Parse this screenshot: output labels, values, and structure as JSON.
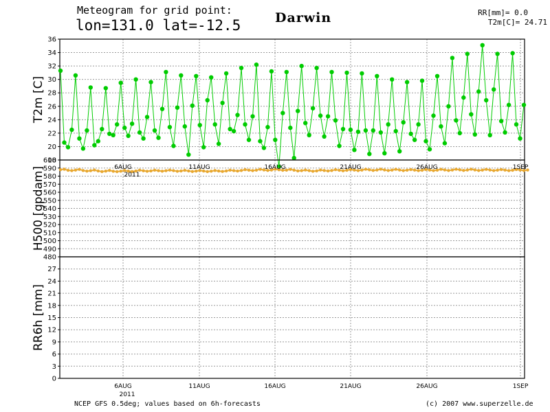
{
  "header": {
    "line1": "Meteogram for grid point:",
    "line2": "lon=131.0 lat=-12.5",
    "station": "Darwin",
    "rr_readout": "RR[mm]= 0.0",
    "t2m_readout": "T2m[C]= 24.71"
  },
  "footer": {
    "source": "NCEP GFS 0.5deg; values based on 6h-forecasts",
    "copyright": "(c) 2007 www.superzelle.de"
  },
  "colors": {
    "t2m": "#00cc00",
    "h500": "#e8a830",
    "axis": "#000000",
    "grid": "#999999"
  },
  "chart_data": [
    {
      "type": "line",
      "ylabel": "T2m [C]",
      "xlim": [
        "2011-08-01T00",
        "2011-09-01T06"
      ],
      "x_tick_labels": [
        "6AUG",
        "11AUG",
        "16AUG",
        "21AUG",
        "26AUG",
        "1SEP"
      ],
      "ylim": [
        18,
        36
      ],
      "y_ticks": [
        18,
        20,
        22,
        24,
        26,
        28,
        30,
        32,
        34,
        36
      ],
      "grid": true,
      "x_step_hours": 6,
      "series": [
        {
          "values": [
            31.3,
            20.6,
            19.9,
            22.5,
            30.6,
            21.2,
            19.7,
            22.4,
            28.8,
            20.2,
            20.8,
            22.6,
            28.7,
            21.9,
            21.7,
            23.3,
            29.5,
            22.8,
            21.6,
            23.4,
            30.0,
            22.1,
            21.2,
            24.4,
            29.6,
            22.4,
            21.3,
            25.6,
            31.1,
            22.9,
            20.1,
            25.8,
            30.6,
            23.0,
            18.8,
            26.1,
            30.5,
            23.2,
            19.9,
            26.9,
            30.3,
            23.3,
            20.4,
            26.5,
            30.9,
            22.6,
            22.3,
            24.7,
            31.7,
            23.3,
            21.0,
            24.5,
            32.2,
            20.8,
            19.8,
            22.9,
            31.2,
            21.0,
            17.0,
            25.0,
            31.1,
            22.8,
            18.3,
            25.3,
            32.0,
            23.5,
            21.7,
            25.7,
            31.7,
            24.6,
            21.5,
            24.5,
            31.1,
            23.9,
            20.1,
            22.6,
            31.0,
            22.5,
            19.5,
            22.2,
            30.9,
            22.4,
            18.9,
            22.4,
            30.5,
            22.1,
            19.0,
            23.3,
            30.0,
            22.3,
            19.3,
            23.6,
            29.6,
            21.9,
            21.0,
            23.3,
            29.8,
            20.8,
            19.6,
            24.6,
            30.5,
            23.0,
            20.5,
            26.0,
            33.2,
            23.9,
            22.0,
            27.3,
            33.8,
            24.8,
            21.8,
            28.2,
            35.1,
            26.9,
            21.7,
            28.5,
            33.8,
            23.8,
            22.1,
            26.2,
            33.9,
            23.3,
            21.2,
            26.2
          ]
        }
      ]
    },
    {
      "type": "line",
      "ylabel": "H500 [gpdam]",
      "xlim": [
        "2011-08-01T00",
        "2011-09-01T06"
      ],
      "x_tick_labels": [
        "6AUG",
        "11AUG",
        "16AUG",
        "21AUG",
        "26AUG",
        "1SEP"
      ],
      "extra_label": "2011",
      "ylim": [
        480,
        600
      ],
      "y_ticks": [
        480,
        490,
        500,
        510,
        520,
        530,
        540,
        550,
        560,
        570,
        580,
        590,
        600
      ],
      "grid": true,
      "x_step_hours": 6,
      "series": [
        {
          "values": [
            588.0,
            588.5,
            587.2,
            586.8,
            587.5,
            588.3,
            587.0,
            586.2,
            586.7,
            587.6,
            586.4,
            585.6,
            586.2,
            587.1,
            586.0,
            585.5,
            586.1,
            587.0,
            586.2,
            585.7,
            586.3,
            587.4,
            586.6,
            586.0,
            586.5,
            587.4,
            586.7,
            586.1,
            586.7,
            587.5,
            586.8,
            586.0,
            586.4,
            587.2,
            586.4,
            585.7,
            586.2,
            587.0,
            586.3,
            585.6,
            586.1,
            587.0,
            586.3,
            585.8,
            586.4,
            587.4,
            586.8,
            586.3,
            587.0,
            588.0,
            587.4,
            586.8,
            587.4,
            588.4,
            587.7,
            587.1,
            587.6,
            588.6,
            587.9,
            587.2,
            587.4,
            588.3,
            587.4,
            586.5,
            586.8,
            587.6,
            586.8,
            586.0,
            586.5,
            587.6,
            587.0,
            586.4,
            587.0,
            588.0,
            587.3,
            586.6,
            587.2,
            588.2,
            587.5,
            586.9,
            587.5,
            588.5,
            587.8,
            587.1,
            587.6,
            588.6,
            587.7,
            587.0,
            587.5,
            588.4,
            587.6,
            586.9,
            587.4,
            588.2,
            587.5,
            586.8,
            587.3,
            588.2,
            587.5,
            586.9,
            587.4,
            588.4,
            587.7,
            587.0,
            587.6,
            588.5,
            587.8,
            587.1,
            587.6,
            588.5,
            587.7,
            587.0,
            587.5,
            588.3,
            587.6,
            586.9,
            587.4,
            588.2,
            587.5,
            586.8,
            587.3,
            588.2,
            587.6,
            587.0,
            587.6
          ]
        }
      ]
    },
    {
      "type": "bar",
      "ylabel": "RR6h [mm]",
      "xlim": [
        "2011-08-01T00",
        "2011-09-01T06"
      ],
      "x_tick_labels": [
        "6AUG",
        "11AUG",
        "16AUG",
        "21AUG",
        "26AUG",
        "1SEP"
      ],
      "extra_label": "2011",
      "ylim": [
        0,
        30
      ],
      "y_ticks": [
        0,
        3,
        6,
        9,
        12,
        15,
        18,
        21,
        24,
        27
      ],
      "grid": true,
      "series": [
        {
          "values": []
        }
      ]
    }
  ]
}
